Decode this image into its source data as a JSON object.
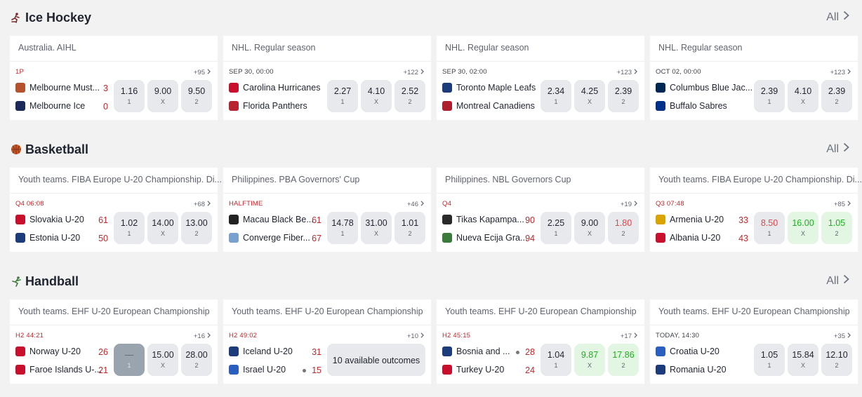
{
  "sections": [
    {
      "title": "Ice Hockey",
      "icon": "hockey-player-icon",
      "all_label": "All",
      "cards": [
        {
          "league": "Australia. AIHL",
          "status": "1P",
          "more": "+95",
          "team1": {
            "name": "Melbourne Must...",
            "score": "3"
          },
          "team2": {
            "name": "Melbourne Ice",
            "score": "0"
          },
          "odds": [
            {
              "v": "1.16",
              "l": "1"
            },
            {
              "v": "9.00",
              "l": "X"
            },
            {
              "v": "9.50",
              "l": "2"
            }
          ]
        },
        {
          "league": "NHL. Regular season",
          "status": "SEP 30, 00:00",
          "more": "+122",
          "team1": {
            "name": "Carolina Hurricanes"
          },
          "team2": {
            "name": "Florida Panthers"
          },
          "odds": [
            {
              "v": "2.27",
              "l": "1"
            },
            {
              "v": "4.10",
              "l": "X"
            },
            {
              "v": "2.52",
              "l": "2"
            }
          ]
        },
        {
          "league": "NHL. Regular season",
          "status": "SEP 30, 02:00",
          "more": "+123",
          "team1": {
            "name": "Toronto Maple Leafs"
          },
          "team2": {
            "name": "Montreal Canadiens"
          },
          "odds": [
            {
              "v": "2.34",
              "l": "1"
            },
            {
              "v": "4.25",
              "l": "X"
            },
            {
              "v": "2.39",
              "l": "2"
            }
          ]
        },
        {
          "league": "NHL. Regular season",
          "status": "OCT 02, 00:00",
          "more": "+123",
          "team1": {
            "name": "Columbus Blue Jac..."
          },
          "team2": {
            "name": "Buffalo Sabres"
          },
          "odds": [
            {
              "v": "2.39",
              "l": "1"
            },
            {
              "v": "4.10",
              "l": "X"
            },
            {
              "v": "2.39",
              "l": "2"
            }
          ]
        }
      ]
    },
    {
      "title": "Basketball",
      "icon": "basketball-icon",
      "all_label": "All",
      "cards": [
        {
          "league": "Youth teams. FIBA Europe U-20 Championship. Di...",
          "status": "Q4 06:08",
          "more": "+68",
          "team1": {
            "name": "Slovakia U-20",
            "score": "61"
          },
          "team2": {
            "name": "Estonia U-20",
            "score": "50"
          },
          "odds": [
            {
              "v": "1.02",
              "l": "1"
            },
            {
              "v": "14.00",
              "l": "X"
            },
            {
              "v": "13.00",
              "l": "2"
            }
          ]
        },
        {
          "league": "Philippines. PBA Governors' Cup",
          "status": "HALFTIME",
          "more": "+46",
          "team1": {
            "name": "Macau Black Be...",
            "score": "61"
          },
          "team2": {
            "name": "Converge Fiber...",
            "score": "67"
          },
          "odds": [
            {
              "v": "14.78",
              "l": "1"
            },
            {
              "v": "31.00",
              "l": "X"
            },
            {
              "v": "1.01",
              "l": "2"
            }
          ]
        },
        {
          "league": "Philippines. NBL Governors Cup",
          "status": "Q4",
          "more": "+19",
          "team1": {
            "name": "Tikas Kapampa...",
            "score": "90"
          },
          "team2": {
            "name": "Nueva Ecija Gra...",
            "score": "94"
          },
          "odds": [
            {
              "v": "2.25",
              "l": "1"
            },
            {
              "v": "9.00",
              "l": "X"
            },
            {
              "v": "1.80",
              "l": "2",
              "style": "red"
            }
          ]
        },
        {
          "league": "Youth teams. FIBA Europe U-20 Championship. Di...",
          "status": "Q3 07:48",
          "more": "+85",
          "team1": {
            "name": "Armenia U-20",
            "score": "33"
          },
          "team2": {
            "name": "Albania U-20",
            "score": "43"
          },
          "odds": [
            {
              "v": "8.50",
              "l": "1",
              "style": "red"
            },
            {
              "v": "16.00",
              "l": "X",
              "style": "green"
            },
            {
              "v": "1.05",
              "l": "2",
              "style": "green"
            }
          ]
        }
      ]
    },
    {
      "title": "Handball",
      "icon": "handball-player-icon",
      "all_label": "All",
      "cards": [
        {
          "league": "Youth teams. EHF U-20 European Championship",
          "status": "H2 44:21",
          "more": "+16",
          "team1": {
            "name": "Norway U-20",
            "score": "26"
          },
          "team2": {
            "name": "Faroe Islands U-...",
            "score": "21"
          },
          "odds": [
            {
              "v": "—",
              "l": "1",
              "style": "locked"
            },
            {
              "v": "15.00",
              "l": "X"
            },
            {
              "v": "28.00",
              "l": "2"
            }
          ]
        },
        {
          "league": "Youth teams. EHF U-20 European Championship",
          "status": "H2 49:02",
          "more": "+10",
          "team1": {
            "name": "Iceland U-20",
            "score": "31"
          },
          "team2": {
            "name": "Israel U-20",
            "score": "15",
            "serve": true
          },
          "outcomes_label": "10 available outcomes"
        },
        {
          "league": "Youth teams. EHF U-20 European Championship",
          "status": "H2 45:15",
          "more": "+17",
          "team1": {
            "name": "Bosnia and ...",
            "score": "28",
            "serve": true
          },
          "team2": {
            "name": "Turkey U-20",
            "score": "24"
          },
          "odds": [
            {
              "v": "1.04",
              "l": "1"
            },
            {
              "v": "9.87",
              "l": "X",
              "style": "green"
            },
            {
              "v": "17.86",
              "l": "2",
              "style": "green"
            }
          ]
        },
        {
          "league": "Youth teams. EHF U-20 European Championship",
          "status": "TODAY, 14:30",
          "more": "+35",
          "team1": {
            "name": "Croatia U-20"
          },
          "team2": {
            "name": "Romania U-20"
          },
          "odds": [
            {
              "v": "1.05",
              "l": "1"
            },
            {
              "v": "15.84",
              "l": "X"
            },
            {
              "v": "12.10",
              "l": "2"
            }
          ]
        }
      ]
    }
  ]
}
